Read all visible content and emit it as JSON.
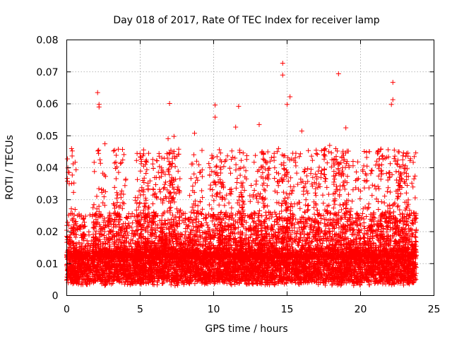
{
  "chart_data": {
    "type": "scatter",
    "title": "Day 018 of 2017, Rate Of TEC Index for receiver lamp",
    "xlabel": "GPS time / hours",
    "ylabel": "ROTI / TECUs",
    "xlim": [
      0,
      25
    ],
    "ylim": [
      0,
      0.08
    ],
    "x_ticks": [
      0,
      5,
      10,
      15,
      20,
      25
    ],
    "x_tick_labels": [
      "0",
      "5",
      "10",
      "15",
      "20",
      "25"
    ],
    "y_ticks": [
      0,
      0.01,
      0.02,
      0.03,
      0.04,
      0.05,
      0.06,
      0.07,
      0.08
    ],
    "y_tick_labels": [
      "0",
      "0.01",
      "0.02",
      "0.03",
      "0.04",
      "0.05",
      "0.06",
      "0.07",
      "0.08"
    ],
    "grid": true,
    "marker": "+",
    "marker_color": "#ff0000",
    "data_x_range": [
      0,
      23.8
    ],
    "baseline_band": [
      0.004,
      0.014
    ],
    "series": [
      {
        "name": "ROTI",
        "points": [
          {
            "x": 2.1,
            "y": 0.0635
          },
          {
            "x": 2.2,
            "y": 0.0598
          },
          {
            "x": 2.2,
            "y": 0.059
          },
          {
            "x": 7.0,
            "y": 0.0601
          },
          {
            "x": 10.1,
            "y": 0.0596
          },
          {
            "x": 11.7,
            "y": 0.0592
          },
          {
            "x": 14.7,
            "y": 0.0727
          },
          {
            "x": 14.7,
            "y": 0.069
          },
          {
            "x": 18.5,
            "y": 0.0694
          },
          {
            "x": 22.2,
            "y": 0.0667
          },
          {
            "x": 22.2,
            "y": 0.0613
          },
          {
            "x": 22.1,
            "y": 0.0598
          },
          {
            "x": 15.2,
            "y": 0.0622
          },
          {
            "x": 15.0,
            "y": 0.0598
          },
          {
            "x": 13.1,
            "y": 0.0535
          },
          {
            "x": 8.7,
            "y": 0.0508
          },
          {
            "x": 10.1,
            "y": 0.0558
          },
          {
            "x": 11.5,
            "y": 0.0527
          },
          {
            "x": 16.0,
            "y": 0.0515
          },
          {
            "x": 19.0,
            "y": 0.0525
          },
          {
            "x": 6.9,
            "y": 0.0491
          },
          {
            "x": 2.6,
            "y": 0.0475
          },
          {
            "x": 5.0,
            "y": 0.0434
          },
          {
            "x": 7.3,
            "y": 0.0498
          },
          {
            "x": 17.9,
            "y": 0.047
          },
          {
            "x": 21.5,
            "y": 0.0438
          },
          {
            "x": 23.4,
            "y": 0.0428
          }
        ]
      }
    ]
  }
}
